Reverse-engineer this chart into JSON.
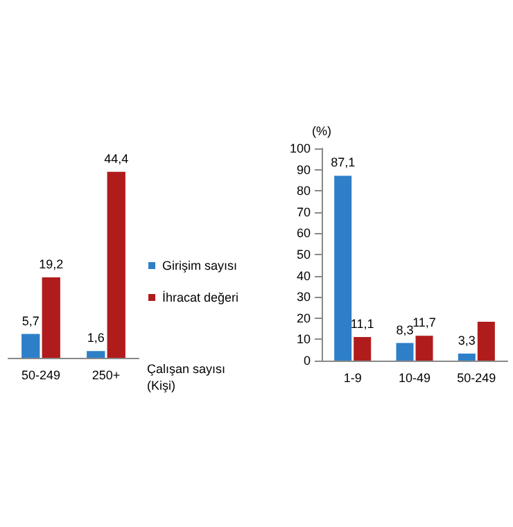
{
  "chart_data": [
    {
      "type": "bar",
      "xlabel": "Çalışan sayısı\n(Kişi)",
      "categories": [
        "50-249",
        "250+"
      ],
      "series": [
        {
          "name": "Girişim sayısı",
          "color": "#2e7fc8",
          "values": [
            5.7,
            1.6
          ],
          "value_labels": [
            "5,7",
            "1,6"
          ]
        },
        {
          "name": "İhracat değeri",
          "color": "#b01c1c",
          "values": [
            19.2,
            44.4
          ],
          "value_labels": [
            "19,2",
            "44,4"
          ]
        }
      ],
      "legend": "right",
      "grid": false
    },
    {
      "type": "bar",
      "ylabel": "(%)",
      "categories": [
        "1-9",
        "10-49",
        "50-249"
      ],
      "series": [
        {
          "color": "#2e7fc8",
          "values": [
            87.1,
            8.3,
            3.3
          ],
          "value_labels": [
            "87,1",
            "8,3",
            "3,3"
          ]
        },
        {
          "color": "#b01c1c",
          "values": [
            11.1,
            11.7,
            18.3
          ],
          "value_labels": [
            "11,1",
            "11,7",
            null
          ]
        }
      ],
      "ylim": [
        0,
        100
      ],
      "yticks": [
        0,
        10,
        20,
        30,
        40,
        50,
        60,
        70,
        80,
        90,
        100
      ],
      "grid": false
    }
  ]
}
